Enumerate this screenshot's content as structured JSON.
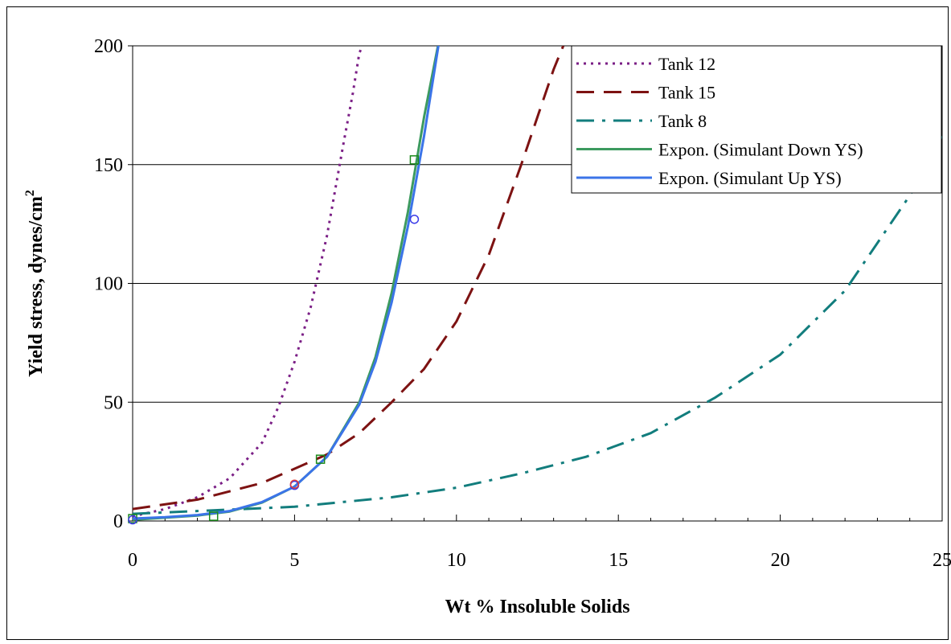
{
  "chart_data": {
    "type": "line",
    "xlabel": "Wt % Insoluble Solids",
    "ylabel": "Yield stress, dynes/cm",
    "ylabel_sup": "2",
    "xlim": [
      0,
      25
    ],
    "ylim": [
      0,
      200
    ],
    "xticks": [
      "0",
      "5",
      "10",
      "15",
      "20",
      "25"
    ],
    "yticks": [
      "0",
      "50",
      "100",
      "150",
      "200"
    ],
    "grid": "horizontal major gridlines",
    "legend_position": "top-right",
    "series": [
      {
        "name": "Tank 12",
        "color": "#7b1f86",
        "dash": "dotted",
        "x": [
          0,
          1,
          2,
          3,
          4,
          4.5,
          5,
          5.5,
          6,
          6.5,
          6.8,
          7.0,
          7.1
        ],
        "y": [
          2,
          5,
          10,
          18,
          33,
          48,
          67,
          90,
          120,
          158,
          180,
          197,
          200
        ]
      },
      {
        "name": "Tank 15",
        "color": "#7d1212",
        "dash": "long-dash",
        "x": [
          0,
          2,
          4,
          6,
          7,
          8,
          9,
          10,
          11,
          12,
          13,
          13.3
        ],
        "y": [
          5,
          9,
          16,
          28,
          37,
          50,
          64,
          84,
          112,
          150,
          190,
          200
        ]
      },
      {
        "name": "Tank 8",
        "color": "#127d7d",
        "dash": "dash-dot",
        "x": [
          0,
          5,
          8,
          10,
          12,
          14,
          16,
          18,
          20,
          22,
          24,
          25
        ],
        "y": [
          3,
          6,
          10,
          14,
          20,
          27,
          37,
          52,
          70,
          97,
          137,
          162
        ]
      },
      {
        "name": "Expon. (Simulant Down YS)",
        "color": "#3c9a5f",
        "dash": "solid",
        "x": [
          0,
          1,
          2,
          3,
          4,
          5,
          6,
          7,
          7.5,
          8,
          8.5,
          9,
          9.5
        ],
        "y": [
          0.5,
          1.4,
          2.3,
          4.0,
          7.8,
          14.5,
          27,
          50,
          69,
          96,
          130,
          170,
          205
        ]
      },
      {
        "name": "Expon. (Simulant Up YS)",
        "color": "#3b74e8",
        "dash": "solid",
        "x": [
          0,
          1,
          2,
          3,
          4,
          5,
          6,
          7,
          7.5,
          8,
          8.5,
          9,
          9.5
        ],
        "y": [
          1,
          1.6,
          2.5,
          4.2,
          8,
          14.5,
          27,
          49,
          67,
          92,
          124,
          162,
          205
        ]
      }
    ],
    "markers": [
      {
        "series": "Simulant Down YS",
        "shape": "square",
        "color": "#1b8a1b",
        "x": [
          0,
          2.5,
          5.8,
          8.7
        ],
        "y": [
          1,
          2,
          26,
          152
        ]
      },
      {
        "series": "Simulant Up YS",
        "shape": "circle",
        "color": "#3b3be8",
        "x": [
          0,
          5,
          8.7
        ],
        "y": [
          0.5,
          15,
          127
        ]
      },
      {
        "series": "Tank 15",
        "shape": "circle",
        "color": "#e03c3c",
        "x": [
          5
        ],
        "y": [
          15.5
        ]
      }
    ]
  }
}
